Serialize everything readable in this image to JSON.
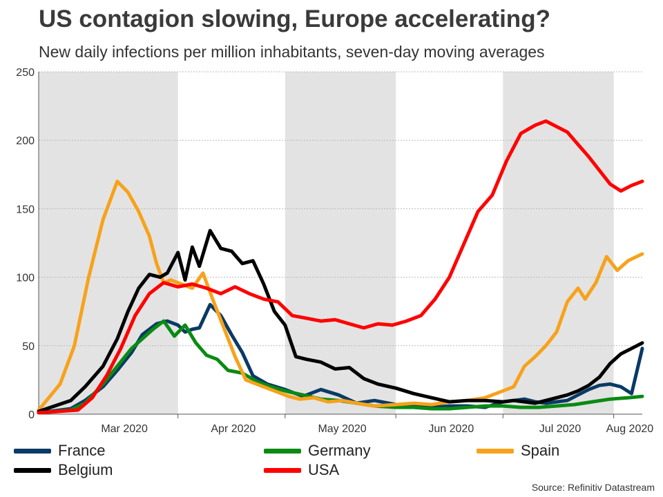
{
  "title": "US contagion slowing, Europe accelerating?",
  "subtitle": "New daily infections per million inhabitants, seven-day moving averages",
  "source": "Source: Refinitiv Datastream",
  "colors": {
    "France": "#0a3a66",
    "Germany": "#0a8a12",
    "Spain": "#f7a21b",
    "Belgium": "#000000",
    "USA": "#ff0000",
    "shade": "#e3e3e3",
    "grid": "#b8b8b8"
  },
  "chart_data": {
    "type": "line",
    "title": "US contagion slowing, Europe accelerating?",
    "subtitle": "New daily infections per million inhabitants, seven-day moving averages",
    "x_start": "2020-02-21",
    "x_end": "2020-08-08",
    "ylim": [
      0,
      250
    ],
    "yticks": [
      0,
      50,
      100,
      150,
      200,
      250
    ],
    "xtick_labels": [
      "Mar 2020",
      "Apr 2020",
      "May 2020",
      "Jun 2020",
      "Jul 2020",
      "Aug 2020"
    ],
    "grid": true,
    "legend_position": "bottom",
    "series": [
      {
        "name": "France",
        "color": "#0a3a66",
        "x": [
          "2020-02-21",
          "2020-03-01",
          "2020-03-05",
          "2020-03-10",
          "2020-03-14",
          "2020-03-18",
          "2020-03-21",
          "2020-03-25",
          "2020-03-28",
          "2020-03-31",
          "2020-04-02",
          "2020-04-04",
          "2020-04-06",
          "2020-04-09",
          "2020-04-12",
          "2020-04-15",
          "2020-04-18",
          "2020-04-21",
          "2020-04-25",
          "2020-04-30",
          "2020-05-05",
          "2020-05-10",
          "2020-05-15",
          "2020-05-20",
          "2020-05-25",
          "2020-05-31",
          "2020-06-05",
          "2020-06-10",
          "2020-06-15",
          "2020-06-20",
          "2020-06-25",
          "2020-06-30",
          "2020-07-03",
          "2020-07-06",
          "2020-07-09",
          "2020-07-12",
          "2020-07-15",
          "2020-07-18",
          "2020-07-21",
          "2020-07-24",
          "2020-07-27",
          "2020-07-30",
          "2020-08-02",
          "2020-08-05",
          "2020-08-08"
        ],
        "y": [
          1,
          4,
          10,
          20,
          32,
          45,
          58,
          66,
          68,
          65,
          60,
          62,
          63,
          80,
          72,
          58,
          45,
          28,
          22,
          18,
          13,
          18,
          14,
          8,
          10,
          7,
          6,
          5,
          6,
          6,
          5,
          9,
          10,
          11,
          9,
          8,
          9,
          10,
          14,
          18,
          21,
          22,
          20,
          15,
          48
        ]
      },
      {
        "name": "Germany",
        "color": "#0a8a12",
        "x": [
          "2020-02-21",
          "2020-03-01",
          "2020-03-05",
          "2020-03-10",
          "2020-03-14",
          "2020-03-18",
          "2020-03-21",
          "2020-03-24",
          "2020-03-27",
          "2020-03-30",
          "2020-04-02",
          "2020-04-05",
          "2020-04-08",
          "2020-04-11",
          "2020-04-14",
          "2020-04-18",
          "2020-04-22",
          "2020-04-26",
          "2020-04-30",
          "2020-05-05",
          "2020-05-10",
          "2020-05-15",
          "2020-05-20",
          "2020-05-25",
          "2020-05-31",
          "2020-06-05",
          "2020-06-10",
          "2020-06-15",
          "2020-06-20",
          "2020-06-25",
          "2020-06-30",
          "2020-07-05",
          "2020-07-10",
          "2020-07-15",
          "2020-07-20",
          "2020-07-25",
          "2020-07-30",
          "2020-08-04",
          "2020-08-08"
        ],
        "y": [
          1,
          3,
          8,
          22,
          35,
          48,
          55,
          62,
          68,
          57,
          65,
          52,
          43,
          40,
          32,
          30,
          24,
          20,
          17,
          14,
          11,
          10,
          8,
          6,
          5,
          5,
          4,
          4,
          5,
          6,
          6,
          5,
          5,
          6,
          7,
          9,
          11,
          12,
          13
        ]
      },
      {
        "name": "Spain",
        "color": "#f7a21b",
        "x": [
          "2020-02-21",
          "2020-02-27",
          "2020-03-02",
          "2020-03-06",
          "2020-03-10",
          "2020-03-14",
          "2020-03-17",
          "2020-03-20",
          "2020-03-23",
          "2020-03-25",
          "2020-03-27",
          "2020-03-29",
          "2020-04-01",
          "2020-04-04",
          "2020-04-07",
          "2020-04-10",
          "2020-04-13",
          "2020-04-16",
          "2020-04-19",
          "2020-04-22",
          "2020-04-25",
          "2020-04-28",
          "2020-05-01",
          "2020-05-04",
          "2020-05-08",
          "2020-05-12",
          "2020-05-16",
          "2020-05-20",
          "2020-05-25",
          "2020-05-31",
          "2020-06-05",
          "2020-06-10",
          "2020-06-15",
          "2020-06-20",
          "2020-06-25",
          "2020-06-30",
          "2020-07-03",
          "2020-07-06",
          "2020-07-09",
          "2020-07-12",
          "2020-07-15",
          "2020-07-18",
          "2020-07-21",
          "2020-07-23",
          "2020-07-26",
          "2020-07-29",
          "2020-08-01",
          "2020-08-04",
          "2020-08-08"
        ],
        "y": [
          3,
          22,
          50,
          100,
          142,
          170,
          162,
          148,
          130,
          110,
          96,
          98,
          95,
          92,
          103,
          82,
          62,
          42,
          25,
          22,
          19,
          16,
          13,
          11,
          12,
          9,
          10,
          8,
          6,
          7,
          8,
          7,
          9,
          10,
          12,
          17,
          20,
          35,
          42,
          50,
          60,
          82,
          92,
          84,
          96,
          115,
          105,
          112,
          117
        ]
      },
      {
        "name": "Belgium",
        "color": "#000000",
        "x": [
          "2020-02-21",
          "2020-03-01",
          "2020-03-05",
          "2020-03-10",
          "2020-03-14",
          "2020-03-17",
          "2020-03-20",
          "2020-03-23",
          "2020-03-26",
          "2020-03-28",
          "2020-03-31",
          "2020-04-02",
          "2020-04-04",
          "2020-04-06",
          "2020-04-09",
          "2020-04-12",
          "2020-04-15",
          "2020-04-18",
          "2020-04-21",
          "2020-04-24",
          "2020-04-27",
          "2020-04-30",
          "2020-05-03",
          "2020-05-06",
          "2020-05-10",
          "2020-05-14",
          "2020-05-18",
          "2020-05-22",
          "2020-05-26",
          "2020-05-31",
          "2020-06-05",
          "2020-06-10",
          "2020-06-15",
          "2020-06-20",
          "2020-06-25",
          "2020-06-30",
          "2020-07-03",
          "2020-07-06",
          "2020-07-09",
          "2020-07-12",
          "2020-07-15",
          "2020-07-18",
          "2020-07-21",
          "2020-07-24",
          "2020-07-27",
          "2020-07-30",
          "2020-08-02",
          "2020-08-05",
          "2020-08-08"
        ],
        "y": [
          2,
          10,
          20,
          35,
          55,
          75,
          92,
          102,
          100,
          103,
          118,
          98,
          122,
          108,
          134,
          121,
          119,
          110,
          112,
          95,
          75,
          65,
          42,
          40,
          38,
          33,
          34,
          26,
          22,
          19,
          15,
          12,
          9,
          10,
          10,
          9,
          10,
          9,
          8,
          10,
          12,
          14,
          17,
          21,
          27,
          37,
          44,
          48,
          52
        ]
      },
      {
        "name": "USA",
        "color": "#ff0000",
        "x": [
          "2020-02-21",
          "2020-03-03",
          "2020-03-07",
          "2020-03-11",
          "2020-03-15",
          "2020-03-19",
          "2020-03-23",
          "2020-03-27",
          "2020-03-31",
          "2020-04-04",
          "2020-04-08",
          "2020-04-12",
          "2020-04-16",
          "2020-04-20",
          "2020-04-24",
          "2020-04-28",
          "2020-05-02",
          "2020-05-06",
          "2020-05-10",
          "2020-05-14",
          "2020-05-18",
          "2020-05-22",
          "2020-05-26",
          "2020-05-30",
          "2020-06-03",
          "2020-06-07",
          "2020-06-11",
          "2020-06-15",
          "2020-06-19",
          "2020-06-23",
          "2020-06-27",
          "2020-07-01",
          "2020-07-05",
          "2020-07-09",
          "2020-07-12",
          "2020-07-15",
          "2020-07-18",
          "2020-07-21",
          "2020-07-24",
          "2020-07-27",
          "2020-07-30",
          "2020-08-02",
          "2020-08-05",
          "2020-08-08"
        ],
        "y": [
          1,
          3,
          12,
          28,
          48,
          72,
          88,
          96,
          93,
          95,
          92,
          88,
          93,
          88,
          84,
          82,
          72,
          70,
          68,
          69,
          66,
          63,
          66,
          65,
          68,
          72,
          84,
          100,
          124,
          148,
          160,
          185,
          205,
          211,
          214,
          210,
          206,
          197,
          188,
          178,
          168,
          163,
          167,
          170
        ]
      }
    ]
  }
}
